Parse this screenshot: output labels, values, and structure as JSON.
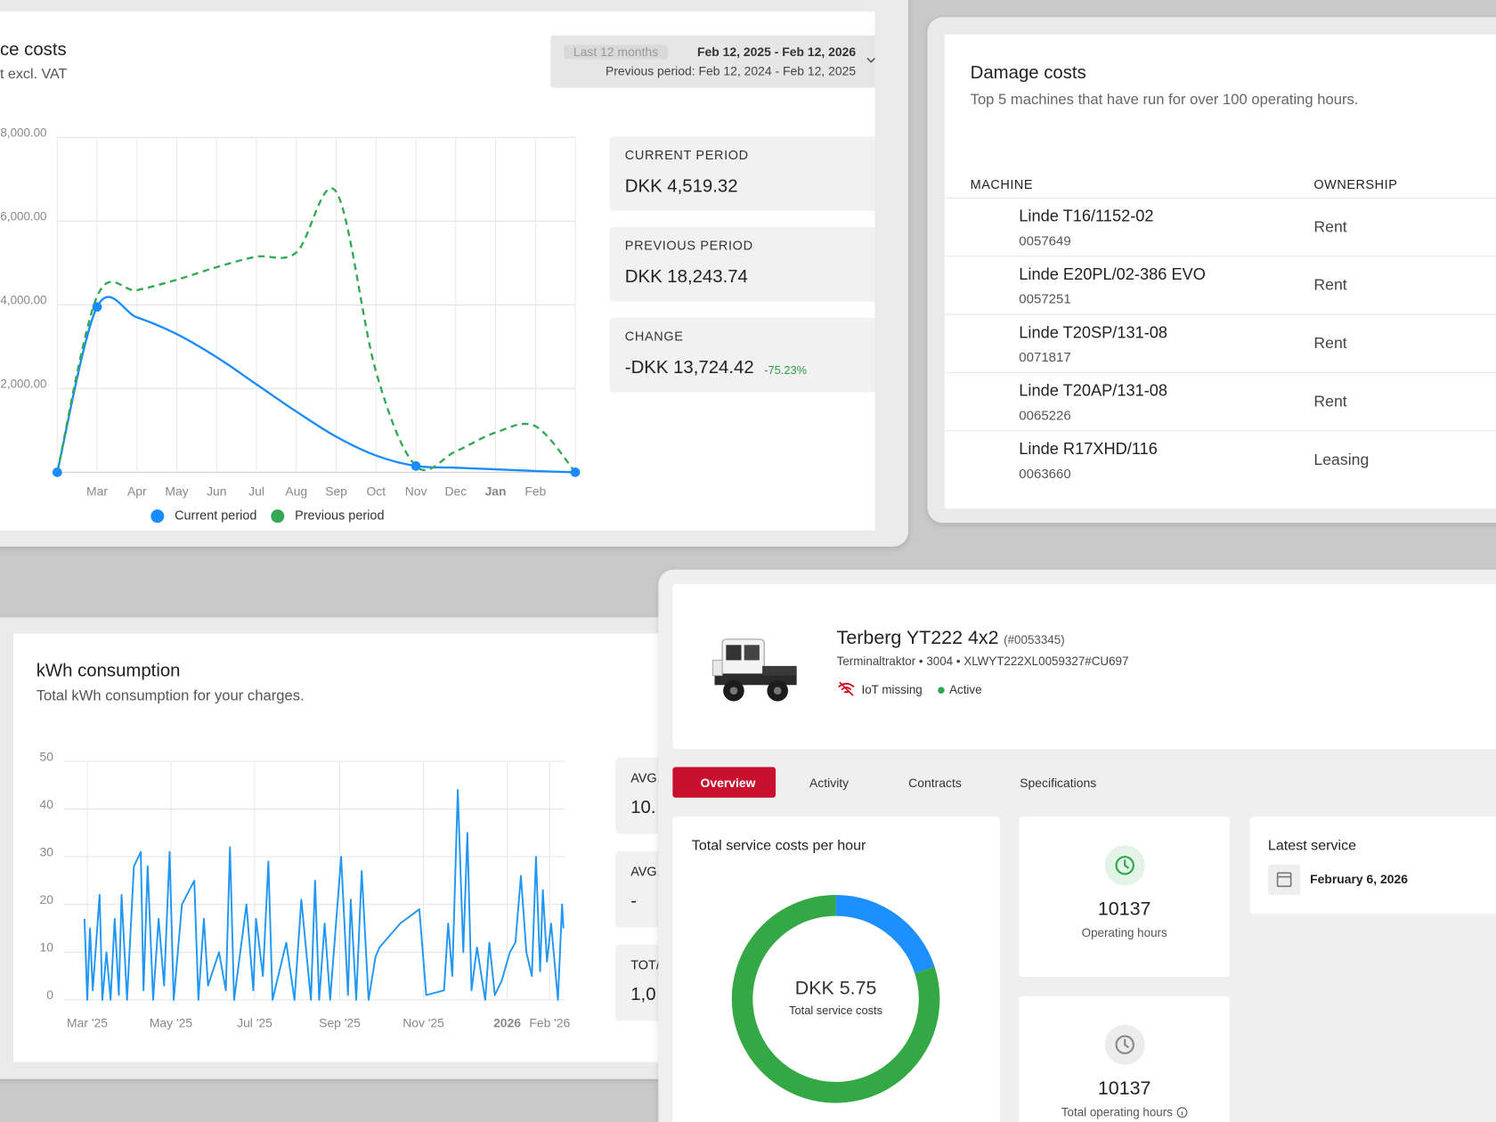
{
  "chart_data": [
    {
      "type": "line",
      "title": "ce costs",
      "subtitle": "t excl. VAT",
      "categories": [
        null,
        "Mar",
        "Apr",
        "May",
        "Jun",
        "Jul",
        "Aug",
        "Sep",
        "Oct",
        "Nov",
        "Dec",
        "Jan",
        "Feb",
        null
      ],
      "ylim": [
        0,
        8000
      ],
      "yticks": [
        {
          "value": 2000,
          "label": "2,000.00"
        },
        {
          "value": 4000,
          "label": "4,000.00"
        },
        {
          "value": 6000,
          "label": "6,000.00"
        },
        {
          "value": 8000,
          "label": "8,000.00"
        }
      ],
      "grid": true,
      "series": [
        {
          "name": "Current period",
          "color": "#1a8cff",
          "values": [
            0,
            3950,
            3700,
            3300,
            2750,
            2100,
            1450,
            850,
            400,
            150,
            110,
            70,
            30,
            0
          ]
        },
        {
          "name": "Previous period",
          "color": "#34a853",
          "dashed": true,
          "values": [
            0,
            4200,
            4350,
            4600,
            4900,
            5150,
            5250,
            6700,
            2400,
            150,
            500,
            950,
            1100,
            0
          ]
        }
      ]
    },
    {
      "type": "line",
      "title": "kWh consumption",
      "subtitle": "Total kWh consumption for your charges.",
      "x": [
        15,
        17,
        19,
        21,
        26,
        28,
        31,
        34,
        37,
        40,
        42,
        46,
        51,
        56,
        58,
        61,
        65,
        69,
        73,
        77,
        80,
        86,
        95,
        98,
        102,
        105,
        113,
        118,
        121,
        124,
        133,
        138,
        140,
        145,
        149,
        152,
        162,
        168,
        173,
        180,
        183,
        186,
        190,
        194,
        202,
        207,
        209,
        213,
        217,
        222,
        227,
        230,
        245,
        259,
        264,
        277,
        280,
        283,
        287,
        291,
        294,
        297,
        301,
        307,
        310,
        314,
        319,
        325,
        329,
        333,
        337,
        341,
        344,
        347,
        349,
        352,
        355,
        360,
        363,
        364
      ],
      "xlim": [
        0,
        365
      ],
      "xticks": [
        {
          "value": 17,
          "label": "Mar '25"
        },
        {
          "value": 78,
          "label": "May '25"
        },
        {
          "value": 139,
          "label": "Jul '25"
        },
        {
          "value": 201,
          "label": "Sep '25"
        },
        {
          "value": 262,
          "label": "Nov '25"
        },
        {
          "value": 323,
          "label": "2026"
        },
        {
          "value": 354,
          "label": "Feb '26"
        }
      ],
      "ylim": [
        0,
        50
      ],
      "yticks": [
        0,
        10,
        20,
        30,
        40,
        50
      ],
      "grid": true,
      "series": [
        {
          "color": "#2196f3",
          "values": [
            17,
            0,
            15,
            2,
            22,
            0,
            10,
            0,
            17,
            1,
            22,
            0,
            28,
            31,
            2,
            28,
            0,
            17,
            3,
            31,
            0,
            20,
            25,
            0,
            17,
            3,
            10,
            2,
            32,
            0,
            20,
            2,
            17,
            5,
            29,
            0,
            12,
            0,
            21,
            0,
            25,
            0,
            16,
            0,
            30,
            1,
            21,
            0,
            27,
            0,
            9,
            11,
            16,
            19,
            1,
            2,
            16,
            5,
            44,
            10,
            35,
            2,
            11,
            0,
            12,
            1,
            4,
            10,
            12,
            26,
            10,
            5,
            30,
            6,
            23,
            8,
            16,
            0,
            20,
            15
          ]
        }
      ]
    },
    {
      "type": "pie",
      "title": "Total service costs per hour",
      "values": [
        20,
        80
      ],
      "colors": [
        "#1e8fff",
        "#34a844"
      ],
      "center_value": "DKK 5.75",
      "center_label": "Total service costs"
    }
  ],
  "date_filter": {
    "range": "Last 12 months",
    "dates": "Feb 12, 2025 - Feb 12, 2026",
    "previous": "Previous period: Feb 12, 2024 - Feb 12, 2025"
  },
  "kpis": [
    {
      "label": "CURRENT PERIOD",
      "value": "DKK 4,519.32"
    },
    {
      "label": "PREVIOUS PERIOD",
      "value": "DKK 18,243.74"
    },
    {
      "label": "CHANGE",
      "value": "-DKK 13,724.42",
      "change": "-75.23%"
    }
  ],
  "damage_costs": {
    "title": "Damage costs",
    "subtitle": "Top 5 machines that have run for over 100 operating hours.",
    "columns": [
      "MACHINE",
      "OWNERSHIP"
    ],
    "rows": [
      {
        "name": "Linde T16/1152-02",
        "id": "0057649",
        "ownership": "Rent"
      },
      {
        "name": "Linde E20PL/02-386 EVO",
        "id": "0057251",
        "ownership": "Rent"
      },
      {
        "name": "Linde T20SP/131-08",
        "id": "0071817",
        "ownership": "Rent"
      },
      {
        "name": "Linde T20AP/131-08",
        "id": "0065226",
        "ownership": "Rent"
      },
      {
        "name": "Linde R17XHD/116",
        "id": "0063660",
        "ownership": "Leasing"
      }
    ]
  },
  "kwh_stats": [
    {
      "label": "AVG.",
      "value": "10."
    },
    {
      "label": "AVG.",
      "value": "-"
    },
    {
      "label": "TOT/",
      "value": "1,0"
    }
  ],
  "machine": {
    "name": "Terberg YT222 4x2",
    "number": "(#0053345)",
    "details": "Terminaltraktor • 3004 • XLWYT222XL0059327#CU697",
    "iot": "IoT missing",
    "status": "Active",
    "tabs": [
      "Overview",
      "Activity",
      "Contracts",
      "Specifications"
    ],
    "operating_hours": {
      "value": "10137",
      "label": "Operating hours"
    },
    "total_hours": {
      "value": "10137",
      "label": "Total operating hours"
    },
    "latest_service": {
      "title": "Latest service",
      "date": "February 6, 2026"
    }
  }
}
